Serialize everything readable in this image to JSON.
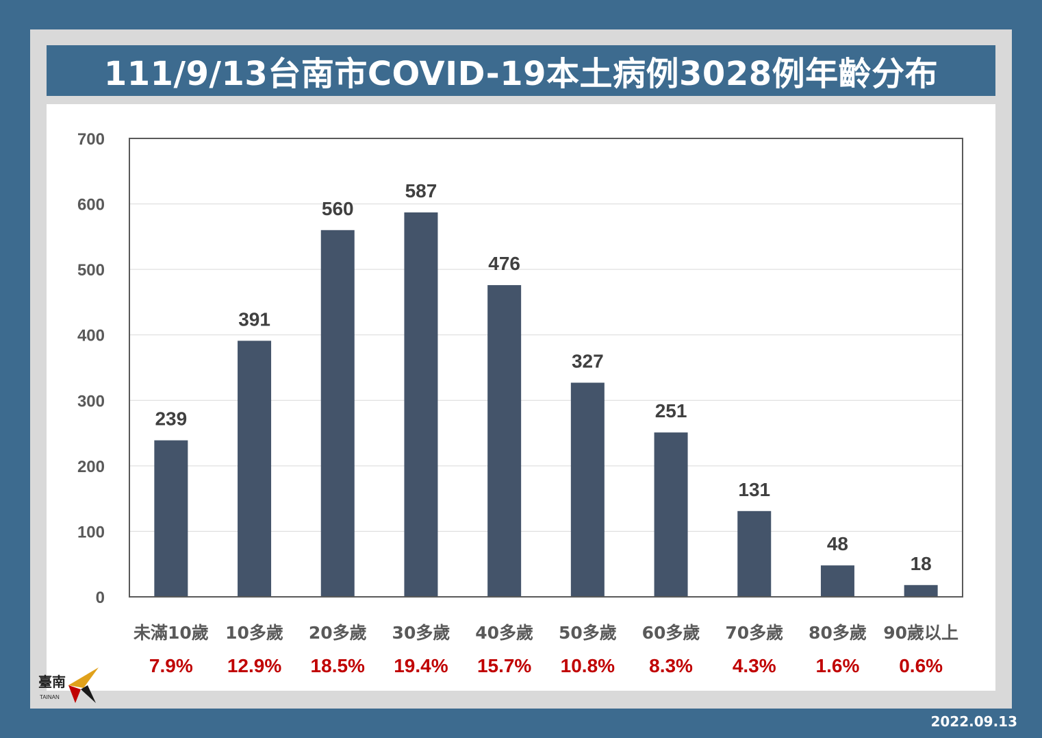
{
  "title": "111/9/13台南市COVID-19本土病例3028例年齡分布",
  "date_stamp": "2022.09.13",
  "logo": {
    "text": "臺南",
    "subtext": "TAINAN"
  },
  "colors": {
    "bar": "#44546a",
    "percent": "#c00000",
    "background": "#3d6b8f",
    "frame": "#d9d9d9"
  },
  "chart_data": {
    "type": "bar",
    "title": "111/9/13台南市COVID-19本土病例3028例年齡分布",
    "categories": [
      "未滿10歲",
      "10多歲",
      "20多歲",
      "30多歲",
      "40多歲",
      "50多歲",
      "60多歲",
      "70多歲",
      "80多歲",
      "90歲以上"
    ],
    "values": [
      239,
      391,
      560,
      587,
      476,
      327,
      251,
      131,
      48,
      18
    ],
    "percentages": [
      "7.9%",
      "12.9%",
      "18.5%",
      "19.4%",
      "15.7%",
      "10.8%",
      "8.3%",
      "4.3%",
      "1.6%",
      "0.6%"
    ],
    "ylim": [
      0,
      700
    ],
    "yticks": [
      "0",
      "100",
      "200",
      "300",
      "400",
      "500",
      "600",
      "700"
    ],
    "xlabel": "",
    "ylabel": "",
    "grid": true,
    "legend": "none"
  }
}
